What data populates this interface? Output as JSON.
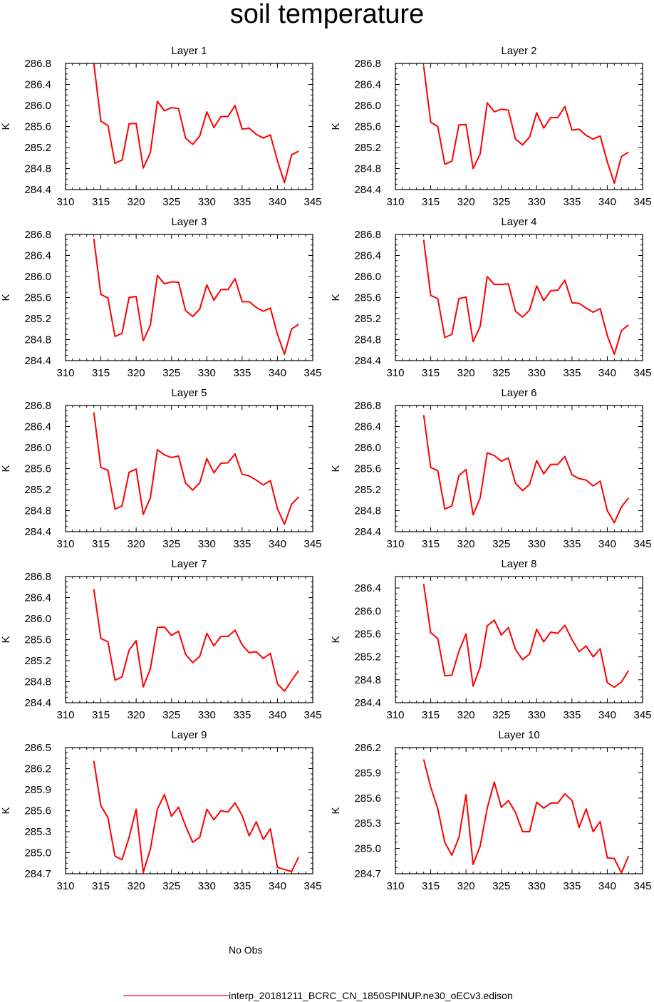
{
  "title": "soil temperature",
  "colors": {
    "series": "#ff0000",
    "noobs": "#0000cc",
    "axis": "#000000"
  },
  "legend": {
    "noobs_label": "No Obs",
    "series_label": "interp_20181211_BCRC_CN_1850SPINUP.ne30_oECv3.edison"
  },
  "chart_data": [
    {
      "type": "line",
      "title": "Layer 1",
      "ylabel": "K",
      "xlim": [
        310,
        345
      ],
      "ylim": [
        284.4,
        286.8
      ],
      "xticks": [
        310,
        315,
        320,
        325,
        330,
        335,
        340,
        345
      ],
      "yticks": [
        284.4,
        284.8,
        285.2,
        285.6,
        286.0,
        286.4,
        286.8
      ],
      "x": [
        314,
        315,
        316,
        317,
        318,
        319,
        320,
        321,
        322,
        323,
        324,
        325,
        326,
        327,
        328,
        329,
        330,
        331,
        332,
        333,
        334,
        335,
        336,
        337,
        338,
        339,
        340,
        341,
        342,
        343
      ],
      "series": [
        {
          "name": "interp_20181211_BCRC_CN_1850SPINUP.ne30_oECv3.edison",
          "values": [
            286.8,
            285.7,
            285.62,
            284.9,
            284.96,
            285.65,
            285.66,
            284.81,
            285.1,
            286.08,
            285.9,
            285.96,
            285.94,
            285.38,
            285.26,
            285.42,
            285.88,
            285.58,
            285.79,
            285.79,
            286.0,
            285.55,
            285.57,
            285.45,
            285.38,
            285.44,
            284.95,
            284.53,
            285.06,
            285.13
          ]
        }
      ]
    },
    {
      "type": "line",
      "title": "Layer 2",
      "ylabel": "K",
      "xlim": [
        310,
        345
      ],
      "ylim": [
        284.4,
        286.8
      ],
      "xticks": [
        310,
        315,
        320,
        325,
        330,
        335,
        340,
        345
      ],
      "yticks": [
        284.4,
        284.8,
        285.2,
        285.6,
        286.0,
        286.4,
        286.8
      ],
      "x": [
        314,
        315,
        316,
        317,
        318,
        319,
        320,
        321,
        322,
        323,
        324,
        325,
        326,
        327,
        328,
        329,
        330,
        331,
        332,
        333,
        334,
        335,
        336,
        337,
        338,
        339,
        340,
        341,
        342,
        343
      ],
      "series": [
        {
          "name": "interp_20181211_BCRC_CN_1850SPINUP.ne30_oECv3.edison",
          "values": [
            286.75,
            285.68,
            285.6,
            284.88,
            284.94,
            285.63,
            285.64,
            284.8,
            285.08,
            286.05,
            285.88,
            285.93,
            285.91,
            285.36,
            285.25,
            285.4,
            285.86,
            285.57,
            285.77,
            285.77,
            285.98,
            285.53,
            285.55,
            285.43,
            285.36,
            285.42,
            284.93,
            284.52,
            285.03,
            285.11
          ]
        }
      ]
    },
    {
      "type": "line",
      "title": "Layer 3",
      "ylabel": "K",
      "xlim": [
        310,
        345
      ],
      "ylim": [
        284.4,
        286.8
      ],
      "xticks": [
        310,
        315,
        320,
        325,
        330,
        335,
        340,
        345
      ],
      "yticks": [
        284.4,
        284.8,
        285.2,
        285.6,
        286.0,
        286.4,
        286.8
      ],
      "x": [
        314,
        315,
        316,
        317,
        318,
        319,
        320,
        321,
        322,
        323,
        324,
        325,
        326,
        327,
        328,
        329,
        330,
        331,
        332,
        333,
        334,
        335,
        336,
        337,
        338,
        339,
        340,
        341,
        342,
        343
      ],
      "series": [
        {
          "name": "interp_20181211_BCRC_CN_1850SPINUP.ne30_oECv3.edison",
          "values": [
            286.72,
            285.66,
            285.59,
            284.86,
            284.92,
            285.6,
            285.62,
            284.78,
            285.07,
            286.02,
            285.86,
            285.9,
            285.89,
            285.35,
            285.24,
            285.38,
            285.84,
            285.55,
            285.75,
            285.75,
            285.96,
            285.52,
            285.52,
            285.41,
            285.34,
            285.4,
            284.9,
            284.52,
            285.0,
            285.09
          ]
        }
      ]
    },
    {
      "type": "line",
      "title": "Layer 4",
      "ylabel": "K",
      "xlim": [
        310,
        345
      ],
      "ylim": [
        284.4,
        286.8
      ],
      "xticks": [
        310,
        315,
        320,
        325,
        330,
        335,
        340,
        345
      ],
      "yticks": [
        284.4,
        284.8,
        285.2,
        285.6,
        286.0,
        286.4,
        286.8
      ],
      "x": [
        314,
        315,
        316,
        317,
        318,
        319,
        320,
        321,
        322,
        323,
        324,
        325,
        326,
        327,
        328,
        329,
        330,
        331,
        332,
        333,
        334,
        335,
        336,
        337,
        338,
        339,
        340,
        341,
        342,
        343
      ],
      "series": [
        {
          "name": "interp_20181211_BCRC_CN_1850SPINUP.ne30_oECv3.edison",
          "values": [
            286.7,
            285.64,
            285.58,
            284.84,
            284.9,
            285.58,
            285.61,
            284.76,
            285.05,
            286.0,
            285.85,
            285.85,
            285.86,
            285.34,
            285.23,
            285.36,
            285.82,
            285.54,
            285.73,
            285.74,
            285.93,
            285.5,
            285.49,
            285.4,
            285.32,
            285.39,
            284.88,
            284.52,
            284.97,
            285.08
          ]
        }
      ]
    },
    {
      "type": "line",
      "title": "Layer 5",
      "ylabel": "K",
      "xlim": [
        310,
        345
      ],
      "ylim": [
        284.4,
        286.8
      ],
      "xticks": [
        310,
        315,
        320,
        325,
        330,
        335,
        340,
        345
      ],
      "yticks": [
        284.4,
        284.8,
        285.2,
        285.6,
        286.0,
        286.4,
        286.8
      ],
      "x": [
        314,
        315,
        316,
        317,
        318,
        319,
        320,
        321,
        322,
        323,
        324,
        325,
        326,
        327,
        328,
        329,
        330,
        331,
        332,
        333,
        334,
        335,
        336,
        337,
        338,
        339,
        340,
        341,
        342,
        343
      ],
      "series": [
        {
          "name": "interp_20181211_BCRC_CN_1850SPINUP.ne30_oECv3.edison",
          "values": [
            286.67,
            285.62,
            285.57,
            284.83,
            284.89,
            285.53,
            285.59,
            284.73,
            285.04,
            285.96,
            285.86,
            285.81,
            285.84,
            285.32,
            285.19,
            285.33,
            285.79,
            285.52,
            285.7,
            285.71,
            285.88,
            285.49,
            285.46,
            285.38,
            285.29,
            285.37,
            284.84,
            284.54,
            284.92,
            285.06
          ]
        }
      ]
    },
    {
      "type": "line",
      "title": "Layer 6",
      "ylabel": "K",
      "xlim": [
        310,
        345
      ],
      "ylim": [
        284.4,
        286.8
      ],
      "xticks": [
        310,
        315,
        320,
        325,
        330,
        335,
        340,
        345
      ],
      "yticks": [
        284.4,
        284.8,
        285.2,
        285.6,
        286.0,
        286.4,
        286.8
      ],
      "x": [
        314,
        315,
        316,
        317,
        318,
        319,
        320,
        321,
        322,
        323,
        324,
        325,
        326,
        327,
        328,
        329,
        330,
        331,
        332,
        333,
        334,
        335,
        336,
        337,
        338,
        339,
        340,
        341,
        342,
        343
      ],
      "series": [
        {
          "name": "interp_20181211_BCRC_CN_1850SPINUP.ne30_oECv3.edison",
          "values": [
            286.62,
            285.62,
            285.56,
            284.83,
            284.89,
            285.47,
            285.58,
            284.72,
            285.04,
            285.9,
            285.85,
            285.74,
            285.8,
            285.32,
            285.18,
            285.3,
            285.75,
            285.5,
            285.68,
            285.68,
            285.83,
            285.48,
            285.41,
            285.38,
            285.27,
            285.36,
            284.8,
            284.57,
            284.87,
            285.04
          ]
        }
      ]
    },
    {
      "type": "line",
      "title": "Layer 7",
      "ylabel": "K",
      "xlim": [
        310,
        345
      ],
      "ylim": [
        284.4,
        286.8
      ],
      "xticks": [
        310,
        315,
        320,
        325,
        330,
        335,
        340,
        345
      ],
      "yticks": [
        284.4,
        284.8,
        285.2,
        285.6,
        286.0,
        286.4,
        286.8
      ],
      "x": [
        314,
        315,
        316,
        317,
        318,
        319,
        320,
        321,
        322,
        323,
        324,
        325,
        326,
        327,
        328,
        329,
        330,
        331,
        332,
        333,
        334,
        335,
        336,
        337,
        338,
        339,
        340,
        341,
        342,
        343
      ],
      "series": [
        {
          "name": "interp_20181211_BCRC_CN_1850SPINUP.ne30_oECv3.edison",
          "values": [
            286.56,
            285.62,
            285.56,
            284.83,
            284.89,
            285.4,
            285.58,
            284.7,
            285.04,
            285.83,
            285.84,
            285.68,
            285.76,
            285.32,
            285.16,
            285.28,
            285.72,
            285.48,
            285.66,
            285.66,
            285.78,
            285.5,
            285.35,
            285.37,
            285.24,
            285.34,
            284.76,
            284.62,
            284.82,
            285.01
          ]
        }
      ]
    },
    {
      "type": "line",
      "title": "Layer 8",
      "ylabel": "K",
      "xlim": [
        310,
        345
      ],
      "ylim": [
        284.4,
        286.6
      ],
      "xticks": [
        310,
        315,
        320,
        325,
        330,
        335,
        340,
        345
      ],
      "yticks": [
        284.4,
        284.8,
        285.2,
        285.6,
        286.0,
        286.4
      ],
      "x": [
        314,
        315,
        316,
        317,
        318,
        319,
        320,
        321,
        322,
        323,
        324,
        325,
        326,
        327,
        328,
        329,
        330,
        331,
        332,
        333,
        334,
        335,
        336,
        337,
        338,
        339,
        340,
        341,
        342,
        343
      ],
      "series": [
        {
          "name": "interp_20181211_BCRC_CN_1850SPINUP.ne30_oECv3.edison",
          "values": [
            286.47,
            285.62,
            285.52,
            284.87,
            284.88,
            285.3,
            285.6,
            284.69,
            285.02,
            285.74,
            285.84,
            285.58,
            285.71,
            285.33,
            285.15,
            285.25,
            285.68,
            285.46,
            285.63,
            285.61,
            285.75,
            285.5,
            285.29,
            285.39,
            285.2,
            285.34,
            284.75,
            284.67,
            284.76,
            284.96
          ]
        }
      ]
    },
    {
      "type": "line",
      "title": "Layer 9",
      "ylabel": "K",
      "xlim": [
        310,
        345
      ],
      "ylim": [
        284.7,
        286.5
      ],
      "xticks": [
        310,
        315,
        320,
        325,
        330,
        335,
        340,
        345
      ],
      "yticks": [
        284.7,
        285.0,
        285.3,
        285.6,
        285.9,
        286.2,
        286.5
      ],
      "x": [
        314,
        315,
        316,
        317,
        318,
        319,
        320,
        321,
        322,
        323,
        324,
        325,
        326,
        327,
        328,
        329,
        330,
        331,
        332,
        333,
        334,
        335,
        336,
        337,
        338,
        339,
        340,
        341,
        342,
        343
      ],
      "series": [
        {
          "name": "interp_20181211_BCRC_CN_1850SPINUP.ne30_oECv3.edison",
          "values": [
            286.31,
            285.67,
            285.5,
            284.95,
            284.9,
            285.22,
            285.62,
            284.72,
            285.05,
            285.62,
            285.83,
            285.52,
            285.65,
            285.38,
            285.15,
            285.22,
            285.62,
            285.47,
            285.6,
            285.58,
            285.71,
            285.53,
            285.24,
            285.44,
            285.19,
            285.34,
            284.79,
            284.76,
            284.73,
            284.94
          ]
        }
      ]
    },
    {
      "type": "line",
      "title": "Layer 10",
      "ylabel": "K",
      "xlim": [
        310,
        345
      ],
      "ylim": [
        284.7,
        286.2
      ],
      "xticks": [
        310,
        315,
        320,
        325,
        330,
        335,
        340,
        345
      ],
      "yticks": [
        284.7,
        285.0,
        285.3,
        285.6,
        285.9,
        286.2
      ],
      "x": [
        314,
        315,
        316,
        317,
        318,
        319,
        320,
        321,
        322,
        323,
        324,
        325,
        326,
        327,
        328,
        329,
        330,
        331,
        332,
        333,
        334,
        335,
        336,
        337,
        338,
        339,
        340,
        341,
        342,
        343
      ],
      "series": [
        {
          "name": "interp_20181211_BCRC_CN_1850SPINUP.ne30_oECv3.edison",
          "values": [
            286.06,
            285.73,
            285.47,
            285.07,
            284.92,
            285.13,
            285.64,
            284.81,
            285.03,
            285.48,
            285.79,
            285.49,
            285.57,
            285.43,
            285.2,
            285.2,
            285.55,
            285.48,
            285.54,
            285.54,
            285.65,
            285.57,
            285.25,
            285.47,
            285.2,
            285.32,
            284.89,
            284.88,
            284.71,
            284.91
          ]
        }
      ]
    }
  ]
}
